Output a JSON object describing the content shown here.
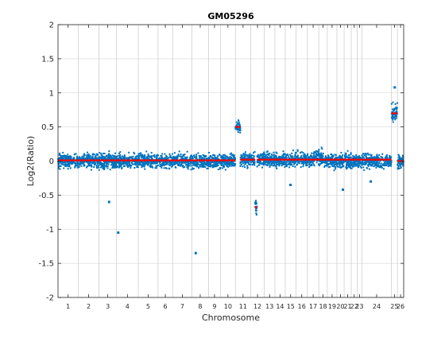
{
  "chart_data": {
    "type": "scatter",
    "title": "GM05296",
    "xlabel": "Chromosome",
    "ylabel": "Log2(Ratio)",
    "ylim": [
      -2,
      2
    ],
    "yticks": [
      -2,
      -1.5,
      -1,
      -0.5,
      0,
      0.5,
      1,
      1.5,
      2
    ],
    "ytick_labels": [
      "-2",
      "-1.5",
      "-1",
      "-0.5",
      "0",
      "0.5",
      "1",
      "1.5",
      "2"
    ],
    "grid": true,
    "xlim": [
      0,
      3100
    ],
    "chromosome_boundaries": [
      0,
      181,
      368,
      525,
      720,
      897,
      1028,
      1201,
      1350,
      1457,
      1591,
      1728,
      1850,
      1945,
      2038,
      2135,
      2237,
      2339,
      2415,
      2501,
      2566,
      2630,
      2683,
      2725,
      2990,
      3044,
      3100
    ],
    "chromosomes": [
      "1",
      "2",
      "3",
      "4",
      "5",
      "6",
      "7",
      "8",
      "9",
      "10",
      "11",
      "12",
      "13",
      "14",
      "15",
      "16",
      "17",
      "18",
      "19",
      "20",
      "21",
      "22",
      "23",
      "24",
      "25",
      "26"
    ],
    "series": [
      {
        "name": "",
        "color": "#0072BD",
        "segments_description": "log2 ratio probes per chromosome",
        "regions": [
          {
            "x_start": 0,
            "x_end": 1591,
            "mean": 0.0,
            "spread": 0.09
          },
          {
            "x_start": 1591,
            "x_end": 1635,
            "mean": 0.5,
            "spread": 0.09
          },
          {
            "x_start": 1635,
            "x_end": 1728,
            "mean": 0.02,
            "spread": 0.09
          },
          {
            "x_start": 1728,
            "x_end": 1765,
            "mean": 0.02,
            "spread": 0.09
          },
          {
            "x_start": 1765,
            "x_end": 1785,
            "mean": -0.68,
            "spread": 0.1
          },
          {
            "x_start": 1785,
            "x_end": 2290,
            "mean": 0.02,
            "spread": 0.09
          },
          {
            "x_start": 2290,
            "x_end": 2380,
            "mean": 0.05,
            "spread": 0.1
          },
          {
            "x_start": 2380,
            "x_end": 2990,
            "mean": 0.0,
            "spread": 0.09
          },
          {
            "x_start": 2990,
            "x_end": 3044,
            "mean": 0.7,
            "spread": 0.12
          },
          {
            "x_start": 3044,
            "x_end": 3100,
            "mean": 0.0,
            "spread": 0.09
          }
        ],
        "outliers": [
          {
            "x": 458,
            "y": -0.6
          },
          {
            "x": 540,
            "y": -1.05
          },
          {
            "x": 1235,
            "y": -1.35
          },
          {
            "x": 2085,
            "y": -0.35
          },
          {
            "x": 2555,
            "y": -0.42
          },
          {
            "x": 2805,
            "y": -0.3
          },
          {
            "x": 3020,
            "y": 1.08
          }
        ]
      }
    ],
    "segment_means": {
      "name": "",
      "color": "#FF0000",
      "segments": [
        {
          "x_start": 0,
          "x_end": 1591,
          "y": 0.01
        },
        {
          "x_start": 1591,
          "x_end": 1635,
          "y": 0.5
        },
        {
          "x_start": 1635,
          "x_end": 1765,
          "y": 0.02
        },
        {
          "x_start": 1765,
          "x_end": 1785,
          "y": -0.68
        },
        {
          "x_start": 1785,
          "x_end": 2990,
          "y": 0.02
        },
        {
          "x_start": 2990,
          "x_end": 3044,
          "y": 0.7
        },
        {
          "x_start": 3044,
          "x_end": 3100,
          "y": 0.0
        }
      ]
    }
  }
}
